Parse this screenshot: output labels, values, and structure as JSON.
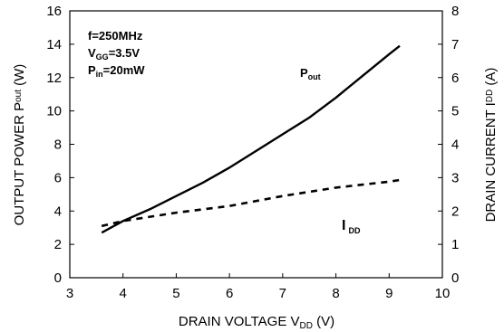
{
  "chart_data": {
    "type": "line",
    "xlabel": {
      "main": "DRAIN VOLTAGE V",
      "sub": "DD",
      "tail": " (V)"
    },
    "ylabel_left": {
      "main": "OUTPUT POWER P",
      "sub": "out",
      "tail": " (W)"
    },
    "ylabel_right": {
      "main": "DRAIN CURRENT I",
      "sub": "DD",
      "tail": " (A)"
    },
    "xlim": [
      3,
      10
    ],
    "ylim_left": [
      0,
      16
    ],
    "ylim_right": [
      0,
      8
    ],
    "x_ticks": [
      "3",
      "4",
      "5",
      "6",
      "7",
      "8",
      "9",
      "10"
    ],
    "y_ticks_left": [
      "0",
      "2",
      "4",
      "6",
      "8",
      "10",
      "12",
      "14",
      "16"
    ],
    "y_ticks_right": [
      "0",
      "1",
      "2",
      "3",
      "4",
      "5",
      "6",
      "7",
      "8"
    ],
    "conditions": {
      "freq": "f=250MHz",
      "vgg": {
        "main": "V",
        "sub": "GG",
        "tail": "=3.5V"
      },
      "pin": {
        "main": "P",
        "sub": "in",
        "tail": "=20mW"
      }
    },
    "series": [
      {
        "label": {
          "main": "P",
          "sub": "out"
        },
        "axis": "left",
        "style": "solid",
        "x": [
          3.6,
          4.0,
          4.5,
          5.0,
          5.5,
          6.0,
          6.5,
          7.0,
          7.5,
          8.0,
          8.5,
          9.0,
          9.2
        ],
        "y": [
          2.7,
          3.4,
          4.1,
          4.9,
          5.7,
          6.6,
          7.6,
          8.6,
          9.6,
          10.8,
          12.1,
          13.4,
          13.9
        ]
      },
      {
        "label": {
          "main": "I",
          "sub": "DD"
        },
        "axis": "right",
        "style": "dashed",
        "x": [
          3.6,
          4.0,
          5.0,
          6.0,
          7.0,
          8.0,
          9.0,
          9.2
        ],
        "y": [
          1.55,
          1.7,
          1.95,
          2.15,
          2.45,
          2.7,
          2.88,
          2.93
        ]
      }
    ]
  },
  "colors": {
    "ink": "#000000",
    "background": "#ffffff"
  }
}
